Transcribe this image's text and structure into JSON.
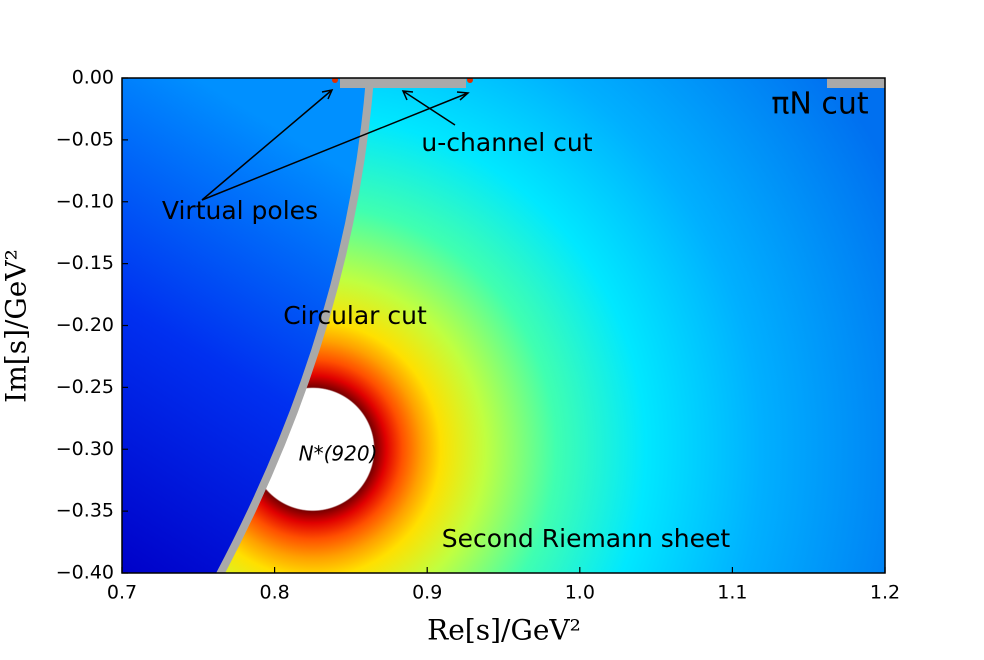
{
  "chart_data": {
    "type": "heatmap",
    "x_label": "Re[s]/GeV²",
    "y_label": "Im[s]/GeV²",
    "xlim": [
      0.7,
      1.2
    ],
    "ylim": [
      -0.4,
      0
    ],
    "xticks": [
      0.7,
      0.8,
      0.9,
      {
        "value": 1,
        "label": "1.0"
      },
      1.1,
      1.2
    ],
    "yticks": [
      {
        "value": 0,
        "label": "0.00"
      },
      {
        "value": -0.05,
        "label": "−0.05"
      },
      {
        "value": -0.1,
        "label": "−0.10"
      },
      {
        "value": -0.15,
        "label": "−0.15"
      },
      {
        "value": -0.2,
        "label": "−0.20"
      },
      {
        "value": -0.25,
        "label": "−0.25"
      },
      {
        "value": -0.3,
        "label": "−0.30"
      },
      {
        "value": -0.35,
        "label": "−0.35"
      },
      {
        "value": -0.4,
        "label": "−0.40"
      }
    ],
    "pole": {
      "label": "N*(920)",
      "x": 0.825,
      "y": -0.3
    },
    "annotations": [
      "πN cut",
      "u-channel cut",
      "Virtual poles",
      "Circular cut",
      "Second Riemann sheet"
    ]
  }
}
